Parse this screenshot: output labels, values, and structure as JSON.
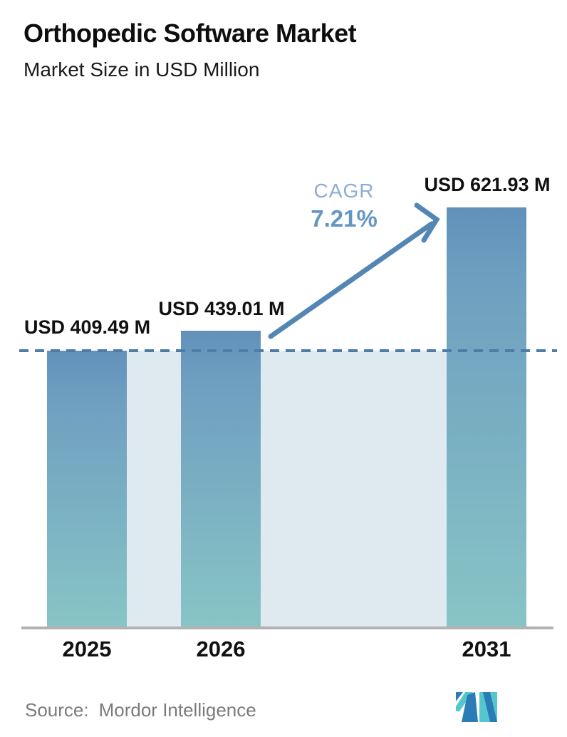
{
  "header": {
    "title": "Orthopedic Software Market",
    "subtitle": "Market Size in USD Million"
  },
  "chart_data": {
    "type": "bar",
    "title": "Orthopedic Software Market",
    "subtitle": "Market Size in USD Million",
    "unit": "USD Million",
    "categories": [
      "2025",
      "2026",
      "2031"
    ],
    "values": [
      409.49,
      439.01,
      621.93
    ],
    "value_labels": [
      "USD 409.49 M",
      "USD 439.01 M",
      "USD 621.93 M"
    ],
    "ylim": [
      0,
      650
    ],
    "grid": "off",
    "reference_line": {
      "value": 409.49,
      "style": "dashed"
    },
    "annotation": {
      "label": "CAGR",
      "value": "7.21%"
    }
  },
  "footer": {
    "source_label": "Source:",
    "source_name": "Mordor Intelligence",
    "logo_name": "mordor-intelligence-logo"
  },
  "colors": {
    "bar_gradient_top": "#6191BA",
    "bar_gradient_bottom": "#88C4C6",
    "band_fill": "#DFE9F0",
    "dashed_line": "#4D7CA8",
    "arrow": "#5486B4",
    "cagr_label": "#8AAED2",
    "cagr_value": "#6496C4",
    "baseline": "#B2B2B2",
    "text_dark": "#111111",
    "source_text": "#7B7B7B",
    "logo_teal": "#55C7CC",
    "logo_blue": "#2B7CB6"
  }
}
